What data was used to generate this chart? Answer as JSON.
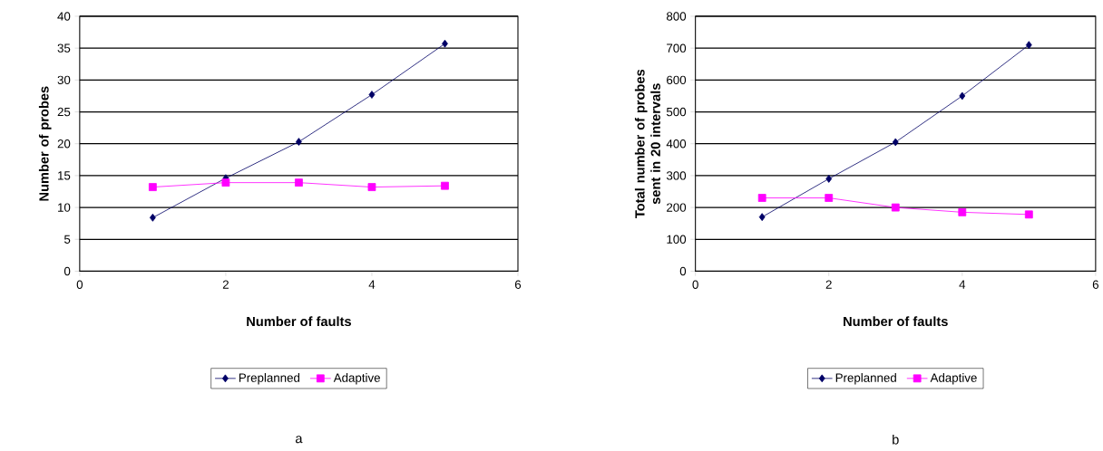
{
  "chart_data": [
    {
      "type": "line",
      "xlabel": "Number of faults",
      "ylabel": "Number of probes",
      "x": [
        1,
        2,
        3,
        4,
        5
      ],
      "series": [
        {
          "name": "Preplanned",
          "color": "#000066",
          "marker": "diamond",
          "values": [
            8.4,
            14.6,
            20.3,
            27.7,
            35.7
          ]
        },
        {
          "name": "Adaptive",
          "color": "#ff00ff",
          "marker": "square",
          "values": [
            13.2,
            13.9,
            13.9,
            13.2,
            13.4
          ]
        }
      ],
      "xlim": [
        0,
        6
      ],
      "xticks": [
        0,
        2,
        4,
        6
      ],
      "ylim": [
        0,
        40
      ],
      "yticks": [
        0,
        5,
        10,
        15,
        20,
        25,
        30,
        35,
        40
      ],
      "grid": "y",
      "legend": "bottom",
      "annotations": [
        "a"
      ]
    },
    {
      "type": "line",
      "xlabel": "Number of faults",
      "ylabel": "Total number of probes sent in 20 intervals",
      "x": [
        1,
        2,
        3,
        4,
        5
      ],
      "series": [
        {
          "name": "Preplanned",
          "color": "#000066",
          "marker": "diamond",
          "values": [
            170,
            290,
            405,
            550,
            710
          ]
        },
        {
          "name": "Adaptive",
          "color": "#ff00ff",
          "marker": "square",
          "values": [
            230,
            230,
            200,
            185,
            178
          ]
        }
      ],
      "xlim": [
        0,
        6
      ],
      "xticks": [
        0,
        2,
        4,
        6
      ],
      "ylim": [
        0,
        800
      ],
      "yticks": [
        0,
        100,
        200,
        300,
        400,
        500,
        600,
        700,
        800
      ],
      "grid": "y",
      "legend": "bottom",
      "annotations": [
        "b"
      ]
    }
  ]
}
